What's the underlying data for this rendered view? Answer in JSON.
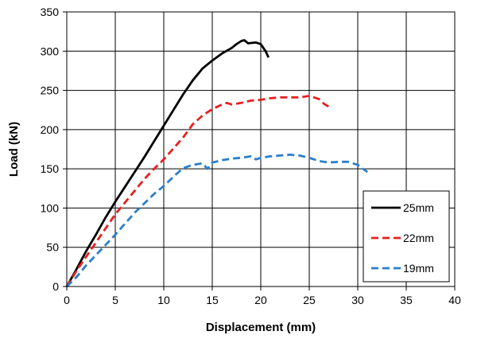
{
  "chart_data": {
    "type": "line",
    "title": "",
    "xlabel": "Displacement  (mm)",
    "ylabel": "Load  (kN)",
    "xlim": [
      0,
      40
    ],
    "ylim": [
      0,
      350
    ],
    "xticks": [
      0,
      5,
      10,
      15,
      20,
      25,
      30,
      35,
      40
    ],
    "yticks": [
      0,
      50,
      100,
      150,
      200,
      250,
      300,
      350
    ],
    "grid": true,
    "legend_position": "lower-right",
    "series": [
      {
        "name": "25mm",
        "color": "#000000",
        "dash": "solid",
        "points": [
          [
            0,
            0
          ],
          [
            1,
            22
          ],
          [
            2,
            45
          ],
          [
            3,
            66
          ],
          [
            4,
            88
          ],
          [
            5,
            108
          ],
          [
            6,
            127
          ],
          [
            7,
            146
          ],
          [
            8,
            165
          ],
          [
            9,
            185
          ],
          [
            10,
            205
          ],
          [
            11,
            225
          ],
          [
            12,
            245
          ],
          [
            13,
            263
          ],
          [
            14,
            278
          ],
          [
            15,
            288
          ],
          [
            16,
            297
          ],
          [
            17,
            304
          ],
          [
            17.5,
            309
          ],
          [
            18,
            313
          ],
          [
            18.3,
            314
          ],
          [
            18.7,
            310
          ],
          [
            19.5,
            311
          ],
          [
            20,
            309
          ],
          [
            20.5,
            300
          ],
          [
            20.8,
            292
          ]
        ]
      },
      {
        "name": "22mm",
        "color": "#e8201e",
        "dash": "dashed",
        "points": [
          [
            0,
            0
          ],
          [
            1,
            20
          ],
          [
            2,
            38
          ],
          [
            3,
            56
          ],
          [
            4,
            74
          ],
          [
            5,
            92
          ],
          [
            6,
            107
          ],
          [
            7,
            122
          ],
          [
            8,
            137
          ],
          [
            9,
            150
          ],
          [
            10,
            162
          ],
          [
            11,
            176
          ],
          [
            12,
            190
          ],
          [
            13,
            207
          ],
          [
            14,
            218
          ],
          [
            15,
            226
          ],
          [
            16,
            232
          ],
          [
            16.5,
            234
          ],
          [
            17,
            232
          ],
          [
            18,
            234
          ],
          [
            19,
            237
          ],
          [
            20,
            238
          ],
          [
            21,
            240
          ],
          [
            22,
            241
          ],
          [
            23,
            241
          ],
          [
            24,
            241
          ],
          [
            25,
            243
          ],
          [
            26,
            239
          ],
          [
            26.5,
            233
          ],
          [
            27.2,
            228
          ]
        ]
      },
      {
        "name": "19mm",
        "color": "#2a7fc9",
        "dash": "dashed",
        "points": [
          [
            0,
            0
          ],
          [
            1,
            12
          ],
          [
            2,
            27
          ],
          [
            3,
            40
          ],
          [
            4,
            53
          ],
          [
            5,
            66
          ],
          [
            6,
            80
          ],
          [
            7,
            94
          ],
          [
            8,
            106
          ],
          [
            9,
            118
          ],
          [
            10,
            128
          ],
          [
            11,
            140
          ],
          [
            12,
            151
          ],
          [
            13,
            155
          ],
          [
            14,
            157
          ],
          [
            14.5,
            150
          ],
          [
            15,
            158
          ],
          [
            16,
            161
          ],
          [
            17,
            163
          ],
          [
            18,
            164
          ],
          [
            19,
            166
          ],
          [
            19.5,
            162
          ],
          [
            20,
            164
          ],
          [
            21,
            166
          ],
          [
            22,
            167
          ],
          [
            23,
            168
          ],
          [
            24,
            167
          ],
          [
            25,
            164
          ],
          [
            26,
            160
          ],
          [
            27,
            158
          ],
          [
            28,
            159
          ],
          [
            29,
            159
          ],
          [
            30,
            155
          ],
          [
            31,
            146
          ]
        ]
      }
    ]
  }
}
